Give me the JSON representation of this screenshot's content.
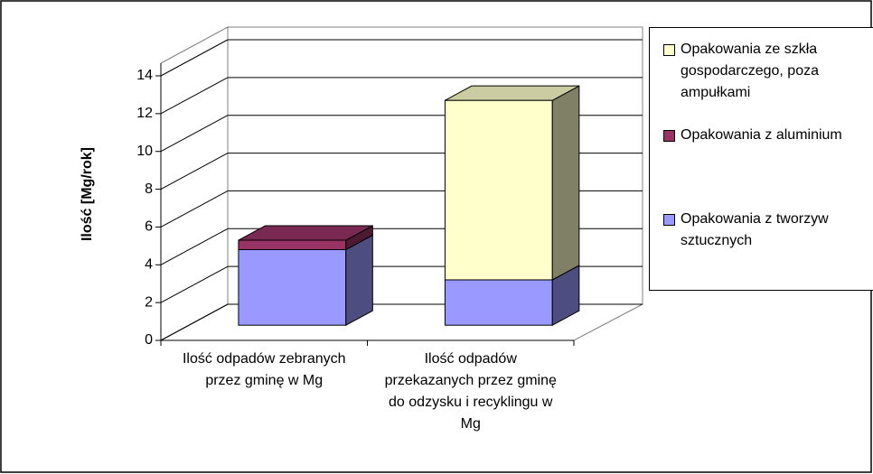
{
  "chart_data": {
    "type": "bar3d_stacked",
    "y_label": "Ilość [Mg/rok]",
    "categories": [
      "Ilość odpadów zebranych przez gminę w Mg",
      "Ilość odpadów przekazanych przez gminę do odzysku i recyklingu w Mg"
    ],
    "series": [
      {
        "name": "Opakowania z tworzyw sztucznych",
        "color": "#9999ff",
        "values": [
          4,
          2.4
        ]
      },
      {
        "name": "Opakowania z aluminium",
        "color": "#993366",
        "values": [
          0.5,
          0
        ]
      },
      {
        "name": "Opakowania ze szkła gospodarczego, poza ampułkami",
        "color": "#ffffcc",
        "values": [
          0,
          9.5
        ]
      }
    ],
    "ylim": [
      0,
      14
    ],
    "yticks": [
      0,
      2,
      4,
      6,
      8,
      10,
      12,
      14
    ],
    "grid": true,
    "legend": "right"
  }
}
